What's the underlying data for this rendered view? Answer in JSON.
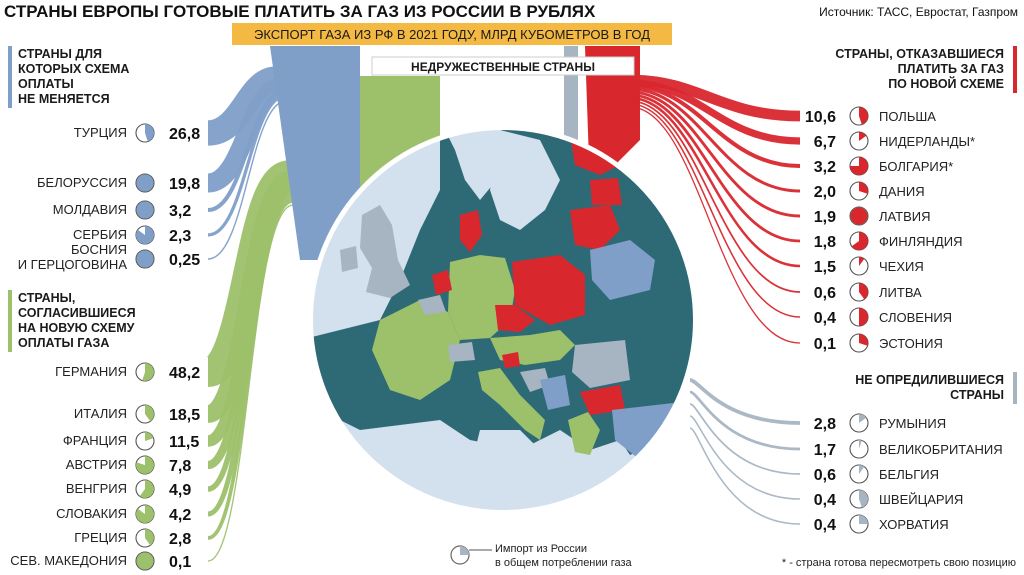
{
  "title": "СТРАНЫ ЕВРОПЫ ГОТОВЫЕ ПЛАТИТЬ ЗА ГАЗ ИЗ РОССИИ В РУБЛЯХ",
  "source": "Источник: ТАСС, Евростат, Газпром",
  "subtitle": "ЭКСПОРТ ГАЗА ИЗ РФ В 2021 ГОДУ, МЛРД КУБОМЕТРОВ В ГОД",
  "unfriendly_label": "НЕДРУЖЕСТВЕННЫЕ СТРАНЫ",
  "legend_text": [
    "Импорт из России",
    "в общем потреблении газа"
  ],
  "footnote": "* - страна готова пересмотреть свою позицию",
  "colors": {
    "blue": "#7f9fc8",
    "green": "#9dc06a",
    "red": "#d9272e",
    "gray": "#a7b4c2",
    "dark_teal": "#2e6a76",
    "sea": "#d3e0ee",
    "title_banner": "#f4b942"
  },
  "chart_data": {
    "type": "bar",
    "unit": "млрд кубометров",
    "groups": [
      {
        "name": "СТРАНЫ ДЛЯ КОТОРЫХ СХЕМА ОПЛАТЫ НЕ МЕНЯЕТСЯ",
        "name_lines": [
          "СТРАНЫ ДЛЯ",
          "КОТОРЫХ СХЕМА",
          "ОПЛАТЫ",
          "НЕ МЕНЯЕТСЯ"
        ],
        "color": "#7f9fc8",
        "items": [
          {
            "country": "ТУРЦИЯ",
            "value_label": "26,8",
            "value": 26.8,
            "share": 0.45
          },
          {
            "country": "БЕЛОРУССИЯ",
            "value_label": "19,8",
            "value": 19.8,
            "share": 1.0
          },
          {
            "country": "МОЛДАВИЯ",
            "value_label": "3,2",
            "value": 3.2,
            "share": 1.0
          },
          {
            "country": "СЕРБИЯ",
            "value_label": "2,3",
            "value": 2.3,
            "share": 0.85
          },
          {
            "country": "БОСНИЯ И ГЕРЦОГОВИНА",
            "country_lines": [
              "БОСНИЯ",
              "И ГЕРЦОГОВИНА"
            ],
            "value_label": "0,25",
            "value": 0.25,
            "share": 1.0
          }
        ]
      },
      {
        "name": "СТРАНЫ, СОГЛАСИВШИЕСЯ НА НОВУЮ СХЕМУ ОПЛАТЫ ГАЗА",
        "name_lines": [
          "СТРАНЫ,",
          "СОГЛАСИВШИЕСЯ",
          "НА НОВУЮ СХЕМУ",
          "ОПЛАТЫ ГАЗА"
        ],
        "color": "#9dc06a",
        "items": [
          {
            "country": "ГЕРМАНИЯ",
            "value_label": "48,2",
            "value": 48.2,
            "share": 0.55
          },
          {
            "country": "ИТАЛИЯ",
            "value_label": "18,5",
            "value": 18.5,
            "share": 0.4
          },
          {
            "country": "ФРАНЦИЯ",
            "value_label": "11,5",
            "value": 11.5,
            "share": 0.2
          },
          {
            "country": "АВСТРИЯ",
            "value_label": "7,8",
            "value": 7.8,
            "share": 0.8
          },
          {
            "country": "ВЕНГРИЯ",
            "value_label": "4,9",
            "value": 4.9,
            "share": 0.6
          },
          {
            "country": "СЛОВАКИЯ",
            "value_label": "4,2",
            "value": 4.2,
            "share": 0.85
          },
          {
            "country": "ГРЕЦИЯ",
            "value_label": "2,8",
            "value": 2.8,
            "share": 0.4
          },
          {
            "country": "СЕВ. МАКЕДОНИЯ",
            "value_label": "0,1",
            "value": 0.1,
            "share": 1.0
          }
        ]
      },
      {
        "name": "СТРАНЫ, ОТКАЗАВШИЕСЯ ПЛАТИТЬ ЗА ГАЗ ПО НОВОЙ СХЕМЕ",
        "name_lines": [
          "СТРАНЫ, ОТКАЗАВШИЕСЯ",
          "ПЛАТИТЬ ЗА ГАЗ",
          "ПО НОВОЙ СХЕМЕ"
        ],
        "color": "#d9272e",
        "items": [
          {
            "country": "ПОЛЬША",
            "value_label": "10,6",
            "value": 10.6,
            "share": 0.45
          },
          {
            "country": "НИДЕРЛАНДЫ*",
            "value_label": "6,7",
            "value": 6.7,
            "share": 0.15
          },
          {
            "country": "БОЛГАРИЯ*",
            "value_label": "3,2",
            "value": 3.2,
            "share": 0.75
          },
          {
            "country": "ДАНИЯ",
            "value_label": "2,0",
            "value": 2.0,
            "share": 0.3
          },
          {
            "country": "ЛАТВИЯ",
            "value_label": "1,9",
            "value": 1.9,
            "share": 1.0
          },
          {
            "country": "ФИНЛЯНДИЯ",
            "value_label": "1,8",
            "value": 1.8,
            "share": 0.65
          },
          {
            "country": "ЧЕХИЯ",
            "value_label": "1,5",
            "value": 1.5,
            "share": 0.1
          },
          {
            "country": "ЛИТВА",
            "value_label": "0,6",
            "value": 0.6,
            "share": 0.4
          },
          {
            "country": "СЛОВЕНИЯ",
            "value_label": "0,4",
            "value": 0.4,
            "share": 0.5
          },
          {
            "country": "ЭСТОНИЯ",
            "value_label": "0,1",
            "value": 0.1,
            "share": 0.3
          }
        ]
      },
      {
        "name": "НЕ ОПРЕДИЛИВШИЕСЯ СТРАНЫ",
        "name_lines": [
          "НЕ ОПРЕДИЛИВШИЕСЯ",
          "СТРАНЫ"
        ],
        "color": "#a7b4c2",
        "items": [
          {
            "country": "РУМЫНИЯ",
            "value_label": "2,8",
            "value": 2.8,
            "share": 0.15
          },
          {
            "country": "ВЕЛИКОБРИТАНИЯ",
            "value_label": "1,7",
            "value": 1.7,
            "share": 0.05
          },
          {
            "country": "БЕЛЬГИЯ",
            "value_label": "0,6",
            "value": 0.6,
            "share": 0.1
          },
          {
            "country": "ШВЕЙЦАРИЯ",
            "value_label": "0,4",
            "value": 0.4,
            "share": 0.45
          },
          {
            "country": "ХОРВАТИЯ",
            "value_label": "0,4",
            "value": 0.4,
            "share": 0.25
          }
        ]
      }
    ]
  }
}
